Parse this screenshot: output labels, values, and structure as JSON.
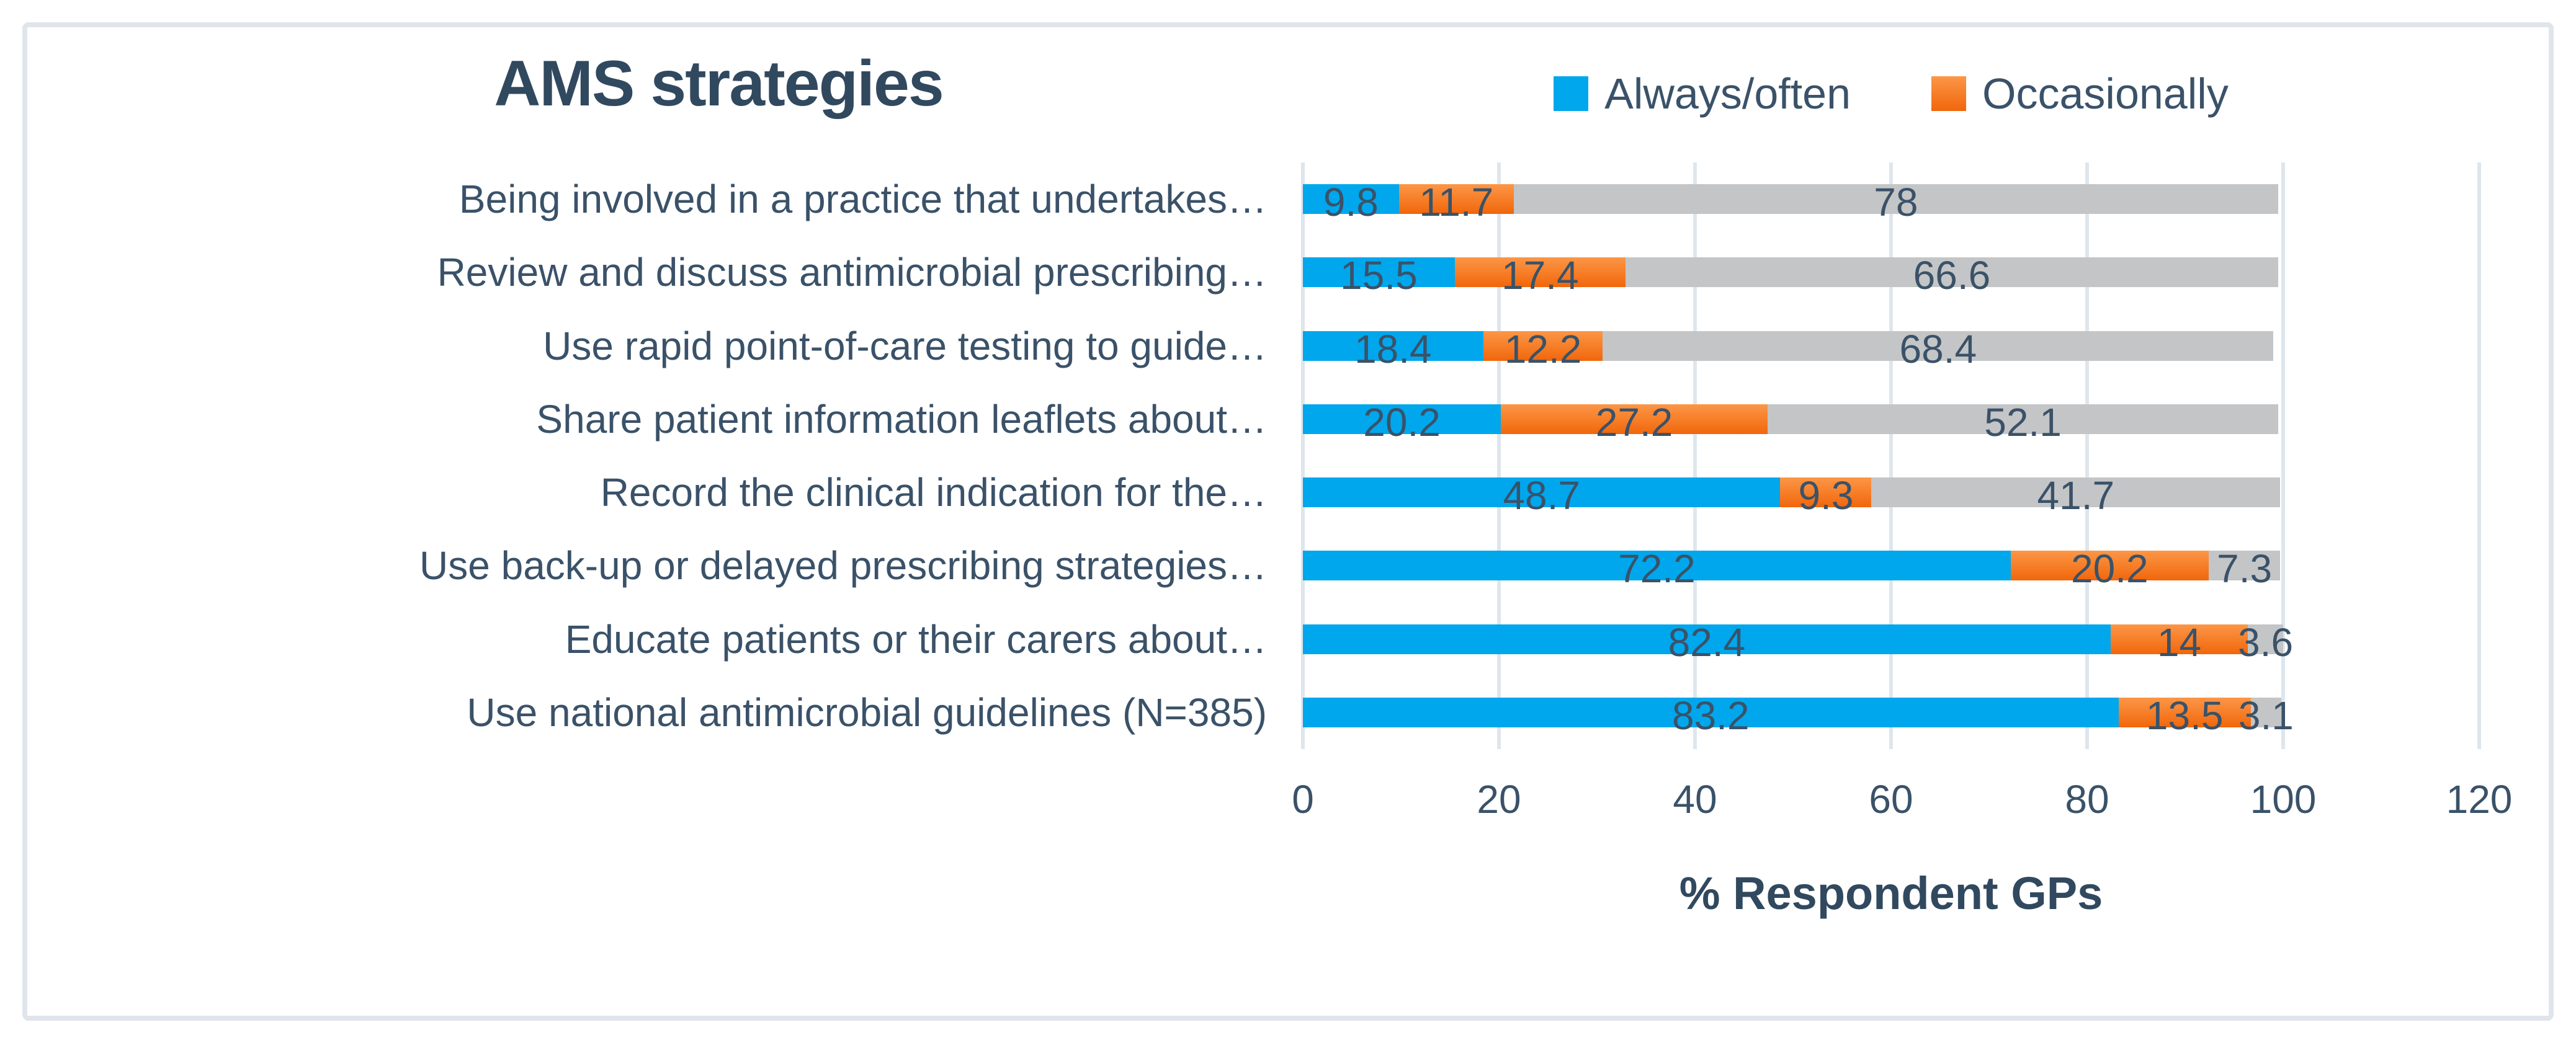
{
  "figure": {
    "title": "AMS strategies",
    "x_axis_title": "% Respondent GPs"
  },
  "legend": [
    {
      "label": "Always/often",
      "color": "#00a7ec",
      "icon": "square-swatch"
    },
    {
      "label": "Occasionally",
      "color": "#f4751c",
      "icon": "square-swatch"
    }
  ],
  "colors": {
    "always_often_blue": "#00a7ec",
    "occasionally_orange": "#f4751c",
    "remainder_gray": "#c4c5c6",
    "gridline": "#dee6ed",
    "frame_border": "#dfe5eb",
    "text": "#3a5269"
  },
  "chart_data": {
    "type": "bar",
    "orientation": "horizontal",
    "stacked": true,
    "title": "AMS strategies",
    "xlabel": "% Respondent GPs",
    "ylabel": "",
    "xlim": [
      0,
      120
    ],
    "x_ticks": [
      0,
      20,
      40,
      60,
      80,
      100,
      120
    ],
    "grid": true,
    "legend_position": "top",
    "categories": [
      "Being involved in a practice that undertakes…",
      "Review and discuss antimicrobial prescribing…",
      "Use rapid point-of-care testing to guide…",
      "Share patient information leaflets about…",
      "Record the clinical indication for the…",
      "Use back-up or delayed prescribing strategies…",
      "Educate patients or their carers about…",
      "Use national antimicrobial guidelines (N=385)"
    ],
    "series": [
      {
        "name": "Always/often",
        "color": "#00a7ec",
        "values": [
          9.8,
          15.5,
          18.4,
          20.2,
          48.7,
          72.2,
          82.4,
          83.2
        ]
      },
      {
        "name": "Occasionally",
        "color": "#f4751c",
        "values": [
          11.7,
          17.4,
          12.2,
          27.2,
          9.3,
          20.2,
          14,
          13.5
        ]
      },
      {
        "name": "",
        "color": "#c4c5c6",
        "values": [
          78,
          66.6,
          68.4,
          52.1,
          41.7,
          7.3,
          3.6,
          3.1
        ]
      }
    ]
  }
}
